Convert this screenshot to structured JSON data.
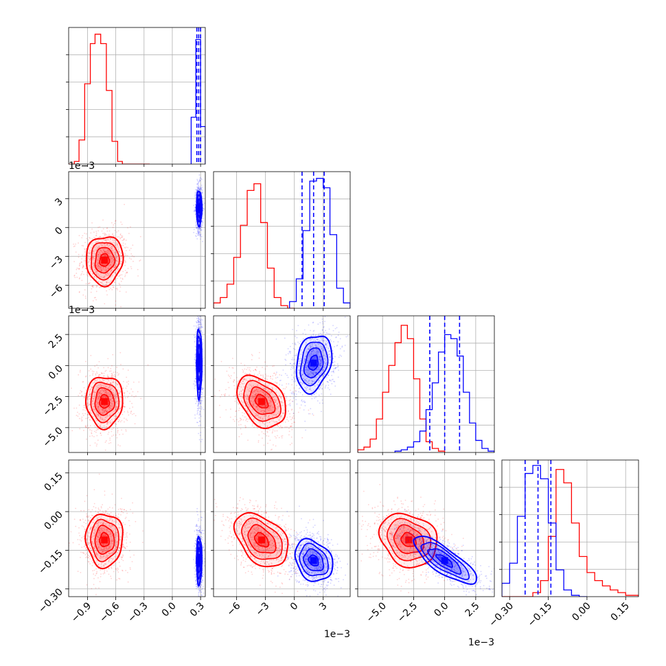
{
  "chart_data": {
    "type": "corner",
    "variables": [
      {
        "range": [
          -1.1,
          0.35
        ],
        "ticks": [
          -0.9,
          -0.6,
          -0.3,
          0.0,
          0.3
        ],
        "tick_labels": [
          "−0.9",
          "−0.6",
          "−0.3",
          "0.0",
          "0.3"
        ],
        "scale_label": ""
      },
      {
        "range": [
          -8.4,
          5.8
        ],
        "ticks": [
          -6,
          -3,
          0,
          3
        ],
        "tick_labels": [
          "−6",
          "−3",
          "0",
          "3"
        ],
        "scale_label": "1e−3"
      },
      {
        "range": [
          -7.0,
          4.0
        ],
        "ticks": [
          -5.0,
          -2.5,
          0.0,
          2.5
        ],
        "tick_labels": [
          "−5.0",
          "−2.5",
          "0.0",
          "2.5"
        ],
        "scale_label": "1e−3"
      },
      {
        "range": [
          -0.33,
          0.2
        ],
        "ticks": [
          -0.3,
          -0.15,
          0.0,
          0.15
        ],
        "tick_labels": [
          "−0.30",
          "−0.15",
          "0.00",
          "0.15"
        ],
        "scale_label": ""
      }
    ],
    "series": [
      {
        "color": "#ff0000",
        "marginals": [
          {
            "bins": [
              -1.1,
              -1.04,
              -0.99,
              -0.93,
              -0.87,
              -0.82,
              -0.76,
              -0.7,
              -0.64,
              -0.58,
              -0.53,
              -0.47,
              -0.41,
              -0.35,
              -0.29,
              -0.24
            ],
            "counts": [
              0,
              0.02,
              0.18,
              0.6,
              0.9,
              0.97,
              0.9,
              0.55,
              0.17,
              0.02,
              0,
              0,
              0,
              0,
              0
            ]
          },
          {
            "bins": [
              -8.4,
              -7.7,
              -7.0,
              -6.3,
              -5.6,
              -4.9,
              -4.2,
              -3.5,
              -2.8,
              -2.1,
              -1.4,
              -0.7,
              0
            ],
            "counts": [
              0.04,
              0.08,
              0.18,
              0.38,
              0.62,
              0.88,
              0.93,
              0.64,
              0.3,
              0.08,
              0.02,
              0
            ]
          },
          {
            "bins": [
              -7.0,
              -6.5,
              -6.0,
              -5.5,
              -5.0,
              -4.5,
              -4.0,
              -3.5,
              -3.0,
              -2.5,
              -2.0,
              -1.5,
              -1.0,
              -0.5,
              0
            ],
            "counts": [
              0.02,
              0.04,
              0.1,
              0.25,
              0.45,
              0.65,
              0.82,
              0.95,
              0.85,
              0.55,
              0.25,
              0.08,
              0.03,
              0.01
            ]
          },
          {
            "bins": [
              -0.33,
              -0.3,
              -0.27,
              -0.24,
              -0.21,
              -0.18,
              -0.15,
              -0.12,
              -0.09,
              -0.06,
              -0.03,
              0.0,
              0.03,
              0.06,
              0.09,
              0.12,
              0.15,
              0.18,
              0.2
            ],
            "counts": [
              0,
              0,
              0,
              0,
              0.03,
              0.12,
              0.45,
              0.95,
              0.85,
              0.55,
              0.3,
              0.18,
              0.12,
              0.08,
              0.05,
              0.03,
              0.01,
              0.01
            ]
          }
        ],
        "scatter_centers": [
          [
            -0.72,
            -3.4,
            -2.9,
            -0.11
          ]
        ]
      },
      {
        "color": "#0000ff",
        "marginals": [
          {
            "bins": [
              0.2,
              0.25,
              0.3,
              0.35
            ],
            "counts": [
              0.35,
              0.93,
              0.28
            ]
          },
          {
            "bins": [
              -0.5,
              0.2,
              0.9,
              1.6,
              2.3,
              3.0,
              3.7,
              4.4,
              5.1,
              5.8
            ],
            "counts": [
              0.05,
              0.22,
              0.58,
              0.95,
              0.97,
              0.9,
              0.55,
              0.15,
              0.04
            ]
          },
          {
            "bins": [
              -4.0,
              -3.5,
              -3.0,
              -2.5,
              -2.0,
              -1.5,
              -1.0,
              -0.5,
              0.0,
              0.5,
              1.0,
              1.5,
              2.0,
              2.5,
              3.0,
              3.5,
              4.0
            ],
            "counts": [
              0.01,
              0.02,
              0.04,
              0.08,
              0.16,
              0.32,
              0.52,
              0.75,
              0.88,
              0.85,
              0.72,
              0.45,
              0.22,
              0.09,
              0.03,
              0.01
            ]
          },
          {
            "bins": [
              -0.33,
              -0.3,
              -0.27,
              -0.24,
              -0.21,
              -0.18,
              -0.15,
              -0.12,
              -0.09,
              -0.06,
              -0.03,
              0.0
            ],
            "counts": [
              0.1,
              0.25,
              0.6,
              0.92,
              0.98,
              0.88,
              0.55,
              0.2,
              0.05,
              0.01,
              0
            ]
          }
        ],
        "quantiles": [
          [
            0.26,
            0.28,
            0.3
          ],
          [
            0.8,
            2.0,
            3.1
          ],
          [
            -1.2,
            0.0,
            1.2
          ],
          [
            -0.24,
            -0.19,
            -0.14
          ]
        ]
      }
    ],
    "grid": true,
    "density_plot": "2D histogram with 4 contour levels and scatter points"
  }
}
